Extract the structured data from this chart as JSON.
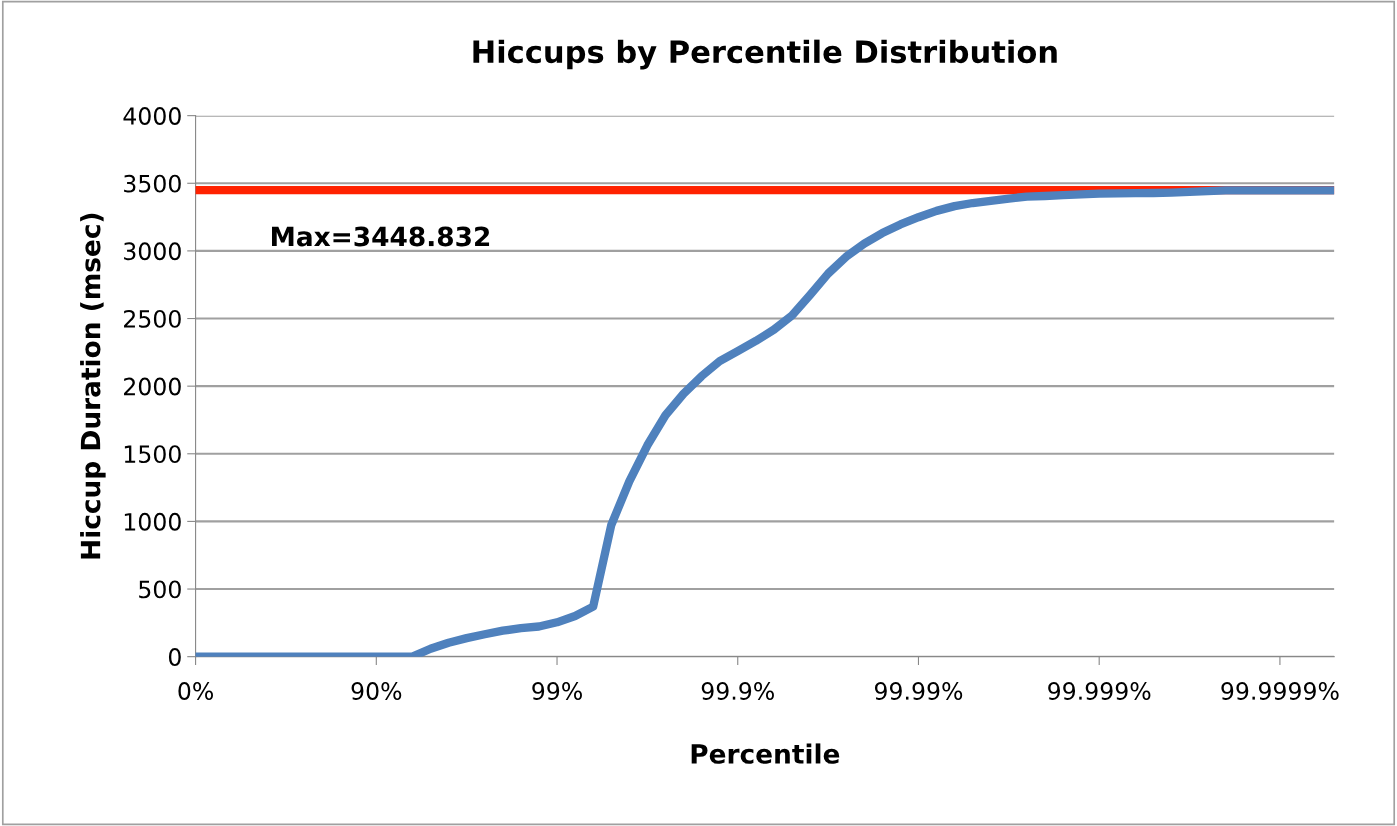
{
  "chart_data": {
    "type": "line",
    "title": "Hiccups by Percentile Distribution",
    "xlabel": "Percentile",
    "ylabel": "Hiccup Duration (msec)",
    "categories": [
      "0%",
      null,
      null,
      null,
      null,
      null,
      null,
      null,
      null,
      null,
      "90%",
      null,
      null,
      null,
      null,
      null,
      null,
      null,
      null,
      null,
      "99%",
      null,
      null,
      null,
      null,
      null,
      null,
      null,
      null,
      null,
      "99.9%",
      null,
      null,
      null,
      null,
      null,
      null,
      null,
      null,
      null,
      "99.99%",
      null,
      null,
      null,
      null,
      null,
      null,
      null,
      null,
      null,
      "99.999%",
      null,
      null,
      null,
      null,
      null,
      null,
      null,
      null,
      null,
      "99.9999%",
      null,
      null,
      null
    ],
    "series": [
      {
        "color": "#4f81bd",
        "values": [
          0,
          0,
          0,
          0,
          0,
          0,
          0,
          0,
          0,
          0,
          0,
          0,
          0,
          59,
          103,
          137,
          166,
          192,
          211,
          223,
          254,
          301,
          370,
          973,
          1296,
          1563,
          1785,
          1944,
          2074,
          2185,
          2259,
          2334,
          2418,
          2522,
          2674,
          2832,
          2957,
          3054,
          3132,
          3196,
          3249,
          3296,
          3331,
          3354,
          3370,
          3387,
          3401,
          3406,
          3412,
          3418,
          3423,
          3425,
          3427,
          3428,
          3431,
          3436,
          3442,
          3448,
          3448,
          3448,
          3448,
          3448,
          3448,
          3448
        ]
      }
    ],
    "ref_lines": [
      {
        "axis": "y",
        "value": 3448.832,
        "label": "Max=3448.832",
        "color": "#ff2200"
      }
    ],
    "ylim": [
      0,
      4000
    ],
    "yticks": [
      0,
      500,
      1000,
      1500,
      2000,
      2500,
      3000,
      3500,
      4000
    ],
    "grid": "y",
    "marker": "none",
    "line_style": "solid"
  }
}
